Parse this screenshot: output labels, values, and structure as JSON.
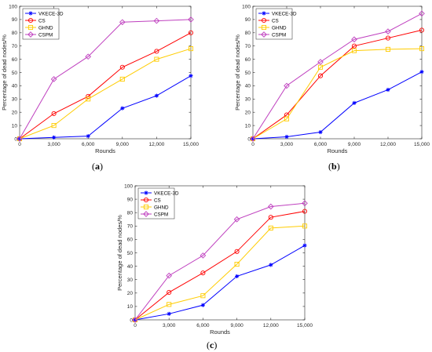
{
  "figure": {
    "captions": [
      "a",
      "b",
      "c"
    ]
  },
  "chart_data": [
    {
      "type": "line",
      "title": "",
      "xlabel": "Rounds",
      "ylabel": "Percentage of dead nodes/%",
      "x": [
        0,
        3000,
        6000,
        9000,
        12000,
        15000
      ],
      "x_tick_labels": [
        "0",
        "3,000",
        "6,000",
        "9,000",
        "12,000",
        "15,000"
      ],
      "y_ticks": [
        0,
        10,
        20,
        30,
        40,
        50,
        60,
        70,
        80,
        90,
        100
      ],
      "xlim": [
        0,
        15000
      ],
      "ylim": [
        0,
        100
      ],
      "grid": false,
      "legend_position": "top-left",
      "series": [
        {
          "name": "VKECE-3D",
          "color": "#0000ff",
          "marker": "star",
          "values": [
            0,
            1,
            2,
            23,
            32.5,
            47.5
          ]
        },
        {
          "name": "CS",
          "color": "#ff0000",
          "marker": "circle",
          "values": [
            0,
            19,
            32,
            54,
            66,
            80
          ]
        },
        {
          "name": "GHND",
          "color": "#ffcc00",
          "marker": "square",
          "values": [
            0,
            10,
            30,
            45,
            60,
            68
          ]
        },
        {
          "name": "CSPM",
          "color": "#bf40bf",
          "marker": "diamond",
          "values": [
            0,
            45,
            62,
            88,
            89,
            90
          ]
        }
      ]
    },
    {
      "type": "line",
      "title": "",
      "xlabel": "Rounds",
      "ylabel": "Percentage of dead nodes/%",
      "x": [
        0,
        3000,
        6000,
        9000,
        12000,
        15000
      ],
      "x_tick_labels": [
        "0",
        "3,000",
        "6,000",
        "9,000",
        "12,000",
        "15,000"
      ],
      "y_ticks": [
        0,
        10,
        20,
        30,
        40,
        50,
        60,
        70,
        80,
        90,
        100
      ],
      "xlim": [
        0,
        15000
      ],
      "ylim": [
        0,
        100
      ],
      "grid": false,
      "legend_position": "top-left",
      "series": [
        {
          "name": "VKECE-3D",
          "color": "#0000ff",
          "marker": "star",
          "values": [
            0,
            1.5,
            5,
            27,
            37,
            50.5
          ]
        },
        {
          "name": "CS",
          "color": "#ff0000",
          "marker": "circle",
          "values": [
            0,
            18,
            47.5,
            70,
            76,
            82
          ]
        },
        {
          "name": "GHND",
          "color": "#ffcc00",
          "marker": "square",
          "values": [
            0,
            15,
            54,
            66.5,
            67.5,
            68
          ]
        },
        {
          "name": "CSPM",
          "color": "#bf40bf",
          "marker": "diamond",
          "values": [
            0,
            40,
            58,
            75,
            81,
            94.5
          ]
        }
      ]
    },
    {
      "type": "line",
      "title": "",
      "xlabel": "Rounds",
      "ylabel": "Percentage of dead nodes/%",
      "x": [
        0,
        3000,
        6000,
        9000,
        12000,
        15000
      ],
      "x_tick_labels": [
        "0",
        "3,000",
        "6,000",
        "9,000",
        "12,000",
        "15,000"
      ],
      "y_ticks": [
        0,
        10,
        20,
        30,
        40,
        50,
        60,
        70,
        80,
        90,
        100
      ],
      "xlim": [
        0,
        15000
      ],
      "ylim": [
        0,
        100
      ],
      "grid": false,
      "legend_position": "top-left",
      "series": [
        {
          "name": "VKECE-3D",
          "color": "#0000ff",
          "marker": "star",
          "values": [
            0,
            4.5,
            11,
            32.5,
            41,
            55.5
          ]
        },
        {
          "name": "CS",
          "color": "#ff0000",
          "marker": "circle",
          "values": [
            0,
            20.5,
            35,
            51,
            76.5,
            81
          ]
        },
        {
          "name": "GHND",
          "color": "#ffcc00",
          "marker": "square",
          "values": [
            0,
            11.5,
            18,
            41.5,
            68.5,
            70
          ]
        },
        {
          "name": "CSPM",
          "color": "#bf40bf",
          "marker": "diamond",
          "values": [
            0,
            33,
            48,
            75,
            84.5,
            87
          ]
        }
      ]
    }
  ]
}
